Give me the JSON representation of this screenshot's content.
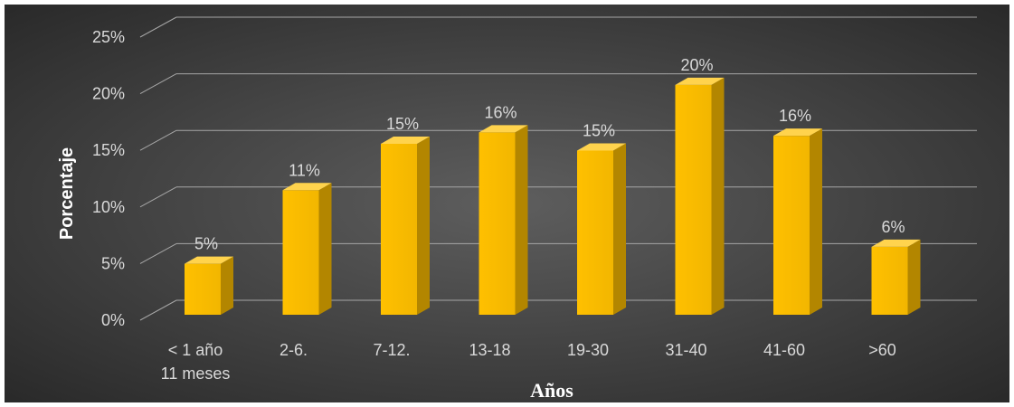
{
  "chart_data": {
    "type": "bar",
    "categories": [
      "< 1 año\n11 meses",
      "2-6.",
      "7-12.",
      "13-18",
      "19-30",
      "31-40",
      "41-60",
      ">60"
    ],
    "values": [
      0.05,
      0.11,
      0.15,
      0.16,
      0.15,
      0.2,
      0.16,
      0.06
    ],
    "bar_heights_estimated": [
      0.045,
      0.11,
      0.151,
      0.161,
      0.145,
      0.203,
      0.158,
      0.06
    ],
    "data_labels": [
      "5%",
      "11%",
      "15%",
      "16%",
      "15%",
      "20%",
      "16%",
      "6%"
    ],
    "yticks": [
      "0%",
      "5%",
      "10%",
      "15%",
      "20%",
      "25%"
    ],
    "ylim": [
      0,
      0.25
    ],
    "xlabel": "Años",
    "ylabel": "Porcentaje",
    "title": "",
    "grid": true,
    "style": "3d-column",
    "colors": {
      "background_center": "#595959",
      "background_edge": "#2b2b2b",
      "bar_front": "#ffc000",
      "bar_side": "#b38600",
      "bar_top": "#ffd34d",
      "gridline": "#a6a6a6",
      "text": "#d9d9d9"
    }
  }
}
